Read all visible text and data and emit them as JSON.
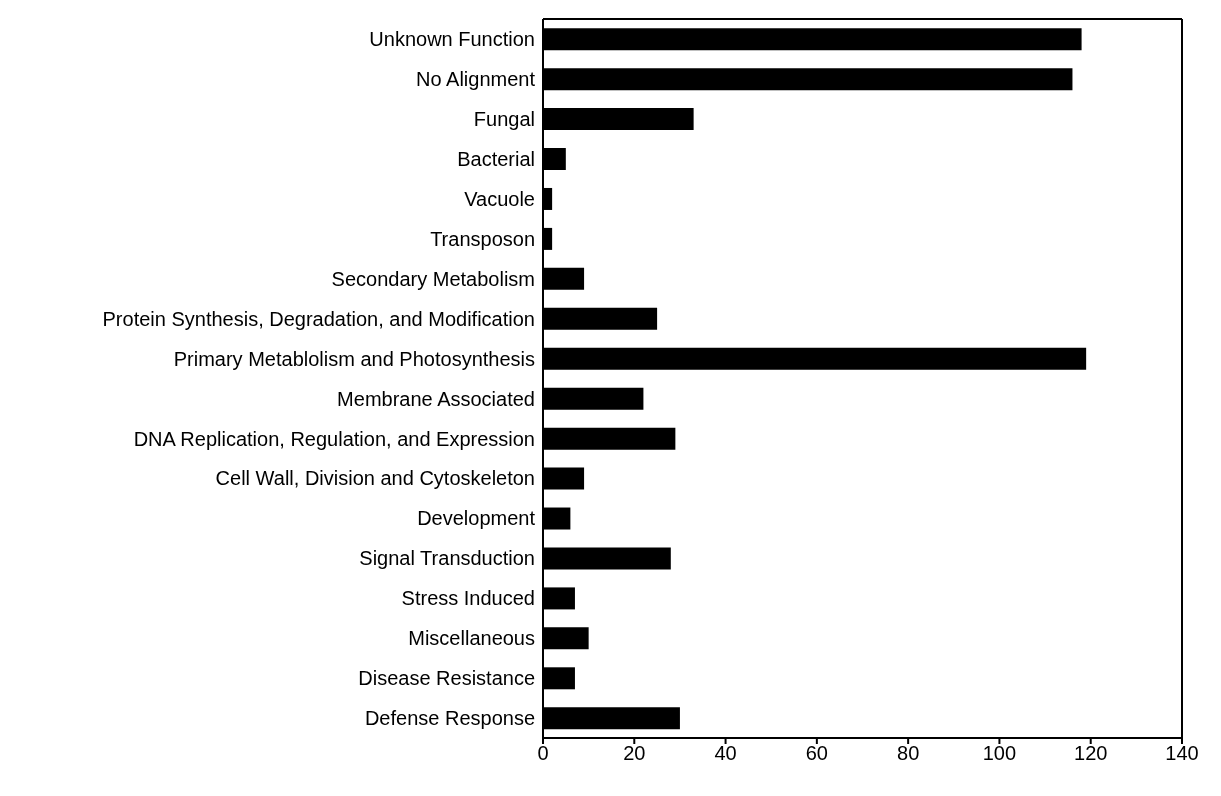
{
  "chart_data": {
    "type": "bar",
    "orientation": "horizontal",
    "categories": [
      "Unknown Function",
      "No Alignment",
      "Fungal",
      "Bacterial",
      "Vacuole",
      "Transposon",
      "Secondary Metabolism",
      "Protein Synthesis, Degradation, and Modification",
      "Primary Metablolism and Photosynthesis",
      "Membrane Associated",
      "DNA Replication, Regulation, and Expression",
      "Cell Wall, Division and Cytoskeleton",
      "Development",
      "Signal Transduction",
      "Stress Induced",
      "Miscellaneous",
      "Disease Resistance",
      "Defense Response"
    ],
    "values": [
      118,
      116,
      33,
      5,
      2,
      2,
      9,
      25,
      119,
      22,
      29,
      9,
      6,
      28,
      7,
      10,
      7,
      30
    ],
    "color": "#000000",
    "xlim": [
      0,
      140
    ],
    "xticks": [
      0,
      20,
      40,
      60,
      80,
      100,
      120,
      140
    ],
    "grid": false
  }
}
